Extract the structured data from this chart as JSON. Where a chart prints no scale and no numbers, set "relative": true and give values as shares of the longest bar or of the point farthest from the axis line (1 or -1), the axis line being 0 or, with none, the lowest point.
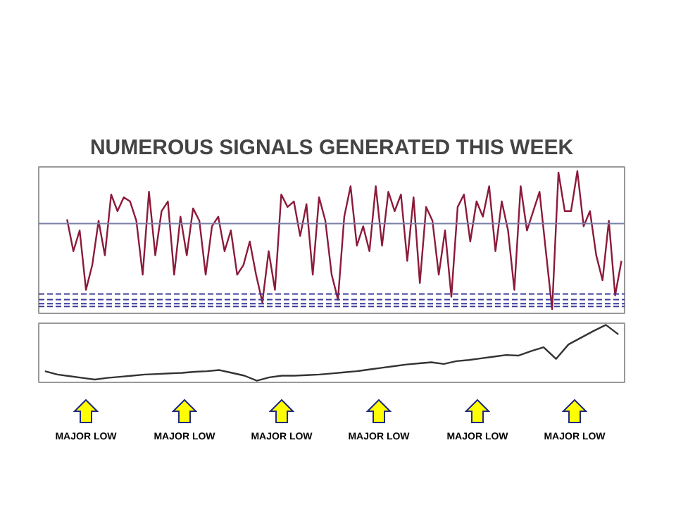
{
  "chart_data": [
    {
      "type": "line",
      "title": "NUMEROUS SIGNALS GENERATED THIS WEEK",
      "relative": true,
      "tick_labels": false,
      "grid": false,
      "categories": [
        null,
        null,
        null,
        null,
        null,
        null,
        null,
        null,
        null,
        null,
        null,
        null,
        null,
        null,
        null,
        null,
        null,
        null,
        null,
        null,
        null,
        null,
        null,
        null,
        null,
        null,
        null,
        null,
        null,
        null,
        null,
        null,
        null,
        null,
        null,
        null,
        null,
        null,
        null,
        null,
        null,
        null,
        null,
        null,
        null,
        null,
        null,
        null,
        null,
        null,
        null,
        null,
        null,
        null,
        null,
        null,
        null,
        null,
        null,
        null,
        null,
        null,
        null,
        null,
        null,
        null,
        null,
        null,
        null,
        null,
        null,
        null,
        null,
        null,
        null,
        null,
        null,
        null,
        null,
        null,
        null,
        null,
        null,
        null,
        null,
        null,
        null,
        null,
        null,
        null,
        null,
        null,
        null
      ],
      "series": [
        {
          "color": "#8b1a3a",
          "values": [
            null,
            null,
            null,
            null,
            0.65,
            0.42,
            0.57,
            0.14,
            0.32,
            0.64,
            0.39,
            0.83,
            0.71,
            0.81,
            0.78,
            0.64,
            0.25,
            0.85,
            0.39,
            0.71,
            0.78,
            0.25,
            0.67,
            0.39,
            0.73,
            0.64,
            0.25,
            0.6,
            0.67,
            0.42,
            0.57,
            0.25,
            0.32,
            0.49,
            0.25,
            0.05,
            0.42,
            0.14,
            0.83,
            0.74,
            0.78,
            0.53,
            0.76,
            0.25,
            0.81,
            0.64,
            0.25,
            0.07,
            0.67,
            0.89,
            0.46,
            0.6,
            0.42,
            0.89,
            0.46,
            0.85,
            0.71,
            0.83,
            0.35,
            0.81,
            0.19,
            0.74,
            0.64,
            0.25,
            0.57,
            0.09,
            0.74,
            0.83,
            0.49,
            0.78,
            0.67,
            0.89,
            0.42,
            0.78,
            0.57,
            0.14,
            0.89,
            0.57,
            0.71,
            0.85,
            0.42,
            0,
            0.99,
            0.71,
            0.71,
            1,
            0.6,
            0.71,
            0.39,
            0.21,
            0.64,
            0.1,
            0.35
          ]
        }
      ],
      "ref_lines": [
        {
          "axis": "y",
          "value": 0.62,
          "color": "#7a7fa8",
          "line_style": "solid"
        },
        {
          "axis": "y",
          "value": 0.11,
          "color": "#3b3b9a",
          "line_style": "dashed"
        },
        {
          "axis": "y",
          "value": 0.07,
          "color": "#3b3b9a",
          "line_style": "dashed"
        },
        {
          "axis": "y",
          "value": 0.04,
          "color": "#3b3b9a",
          "line_style": "dashed"
        },
        {
          "axis": "y",
          "value": 0.02,
          "color": "#3b3b9a",
          "line_style": "dashed"
        }
      ]
    },
    {
      "type": "line",
      "relative": true,
      "tick_labels": false,
      "grid": false,
      "categories": [
        null,
        null,
        null,
        null,
        null,
        null,
        null,
        null,
        null,
        null,
        null,
        null,
        null,
        null,
        null,
        null,
        null,
        null,
        null,
        null,
        null,
        null,
        null,
        null,
        null,
        null,
        null,
        null,
        null,
        null,
        null,
        null,
        null,
        null,
        null,
        null,
        null,
        null,
        null,
        null,
        null,
        null,
        null,
        null,
        null,
        null,
        null
      ],
      "series": [
        {
          "color": "#333333",
          "values": [
            0.17,
            0.11,
            0.08,
            0.05,
            0.02,
            0.05,
            0.07,
            0.09,
            0.11,
            0.12,
            0.13,
            0.14,
            0.16,
            0.17,
            0.19,
            0.14,
            0.09,
            0,
            0.06,
            0.09,
            0.09,
            0.1,
            0.11,
            0.13,
            0.15,
            0.17,
            0.2,
            0.23,
            0.26,
            0.29,
            0.31,
            0.33,
            0.3,
            0.35,
            0.37,
            0.4,
            0.43,
            0.46,
            0.45,
            0.53,
            0.6,
            0.39,
            0.65,
            0.77,
            0.89,
            1,
            0.83
          ]
        }
      ],
      "annotations": [
        "MAJOR LOW",
        "MAJOR LOW",
        "MAJOR LOW",
        "MAJOR LOW",
        "MAJOR LOW",
        "MAJOR LOW"
      ]
    }
  ]
}
